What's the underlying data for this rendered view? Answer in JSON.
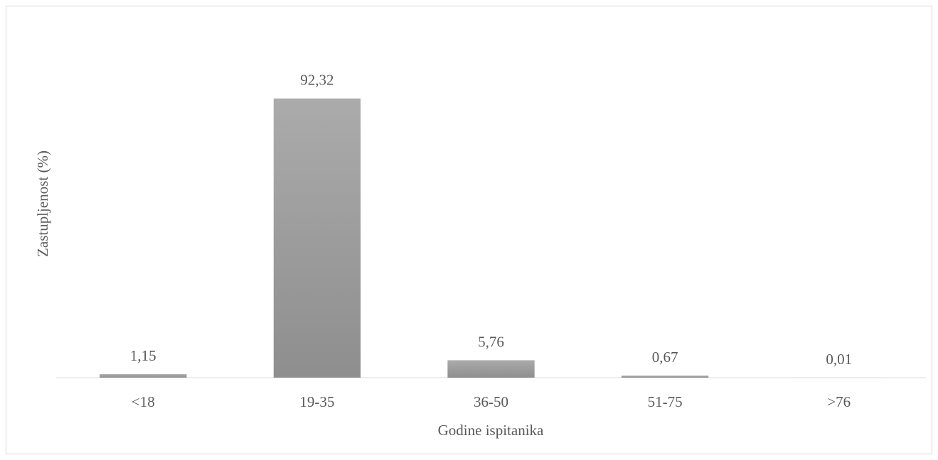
{
  "chart_data": {
    "type": "bar",
    "x_label": "Godine ispitanika",
    "y_label": "Zastupljenost (%)",
    "categories": [
      "<18",
      "19-35",
      "36-50",
      "51-75",
      ">76"
    ],
    "values": [
      1.15,
      92.32,
      5.76,
      0.67,
      0.01
    ],
    "value_labels": [
      "1,15",
      "92,32",
      "5,76",
      "0,67",
      "0,01"
    ],
    "color": "#a0a0a0",
    "ylim": [
      0,
      100
    ]
  }
}
